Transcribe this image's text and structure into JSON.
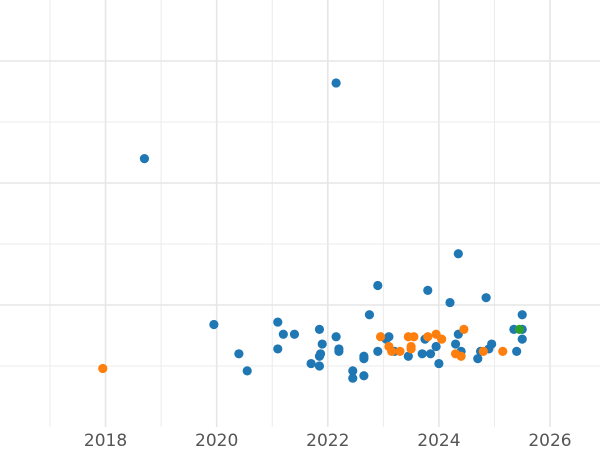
{
  "chart_data": {
    "type": "scatter",
    "title": "",
    "xlabel": "",
    "ylabel": "",
    "grid": true,
    "legend": "none",
    "xlim": [
      2016.1,
      2026.9
    ],
    "ylim": [
      0,
      3.5
    ],
    "x_ticks": [
      2018,
      2020,
      2022,
      2024,
      2026
    ],
    "x_tick_labels": [
      "2018",
      "2020",
      "2022",
      "2024",
      "2026"
    ],
    "y_grid_values": [
      1,
      2,
      3
    ],
    "series": [
      {
        "color": "#1f77b4",
        "points": [
          [
            2018.7,
            2.2
          ],
          [
            2022.15,
            2.82
          ],
          [
            2024.35,
            1.42
          ],
          [
            2022.9,
            1.16
          ],
          [
            2023.8,
            1.12
          ],
          [
            2024.2,
            1.02
          ],
          [
            2024.85,
            1.06
          ],
          [
            2025.5,
            0.92
          ],
          [
            2019.95,
            0.84
          ],
          [
            2021.1,
            0.86
          ],
          [
            2021.2,
            0.76
          ],
          [
            2021.4,
            0.76
          ],
          [
            2021.85,
            0.8
          ],
          [
            2021.9,
            0.68
          ],
          [
            2022.15,
            0.74
          ],
          [
            2022.75,
            0.92
          ],
          [
            2023.1,
            0.74
          ],
          [
            2023.05,
            0.72
          ],
          [
            2020.4,
            0.6
          ],
          [
            2020.55,
            0.46
          ],
          [
            2021.1,
            0.64
          ],
          [
            2021.7,
            0.52
          ],
          [
            2021.85,
            0.5
          ],
          [
            2021.85,
            0.58
          ],
          [
            2021.87,
            0.6
          ],
          [
            2022.2,
            0.64
          ],
          [
            2022.2,
            0.62
          ],
          [
            2022.45,
            0.46
          ],
          [
            2022.45,
            0.4
          ],
          [
            2022.65,
            0.42
          ],
          [
            2022.65,
            0.56
          ],
          [
            2022.65,
            0.58
          ],
          [
            2022.9,
            0.62
          ],
          [
            2023.2,
            0.62
          ],
          [
            2023.45,
            0.58
          ],
          [
            2023.7,
            0.6
          ],
          [
            2023.75,
            0.72
          ],
          [
            2023.85,
            0.6
          ],
          [
            2023.95,
            0.66
          ],
          [
            2024.0,
            0.52
          ],
          [
            2024.3,
            0.68
          ],
          [
            2024.35,
            0.76
          ],
          [
            2024.4,
            0.62
          ],
          [
            2024.7,
            0.56
          ],
          [
            2024.75,
            0.62
          ],
          [
            2024.9,
            0.64
          ],
          [
            2024.95,
            0.68
          ],
          [
            2025.35,
            0.8
          ],
          [
            2025.4,
            0.62
          ],
          [
            2025.5,
            0.72
          ],
          [
            2025.5,
            0.8
          ]
        ]
      },
      {
        "color": "#ff7f0e",
        "points": [
          [
            2017.95,
            0.48
          ],
          [
            2022.95,
            0.74
          ],
          [
            2023.1,
            0.66
          ],
          [
            2023.15,
            0.62
          ],
          [
            2023.3,
            0.62
          ],
          [
            2023.45,
            0.74
          ],
          [
            2023.55,
            0.74
          ],
          [
            2023.5,
            0.64
          ],
          [
            2023.5,
            0.66
          ],
          [
            2023.8,
            0.74
          ],
          [
            2023.95,
            0.76
          ],
          [
            2024.05,
            0.72
          ],
          [
            2024.3,
            0.6
          ],
          [
            2024.4,
            0.58
          ],
          [
            2024.45,
            0.8
          ],
          [
            2024.8,
            0.62
          ],
          [
            2025.15,
            0.62
          ]
        ]
      },
      {
        "color": "#2ca02c",
        "points": [
          [
            2025.45,
            0.8
          ]
        ]
      }
    ]
  }
}
